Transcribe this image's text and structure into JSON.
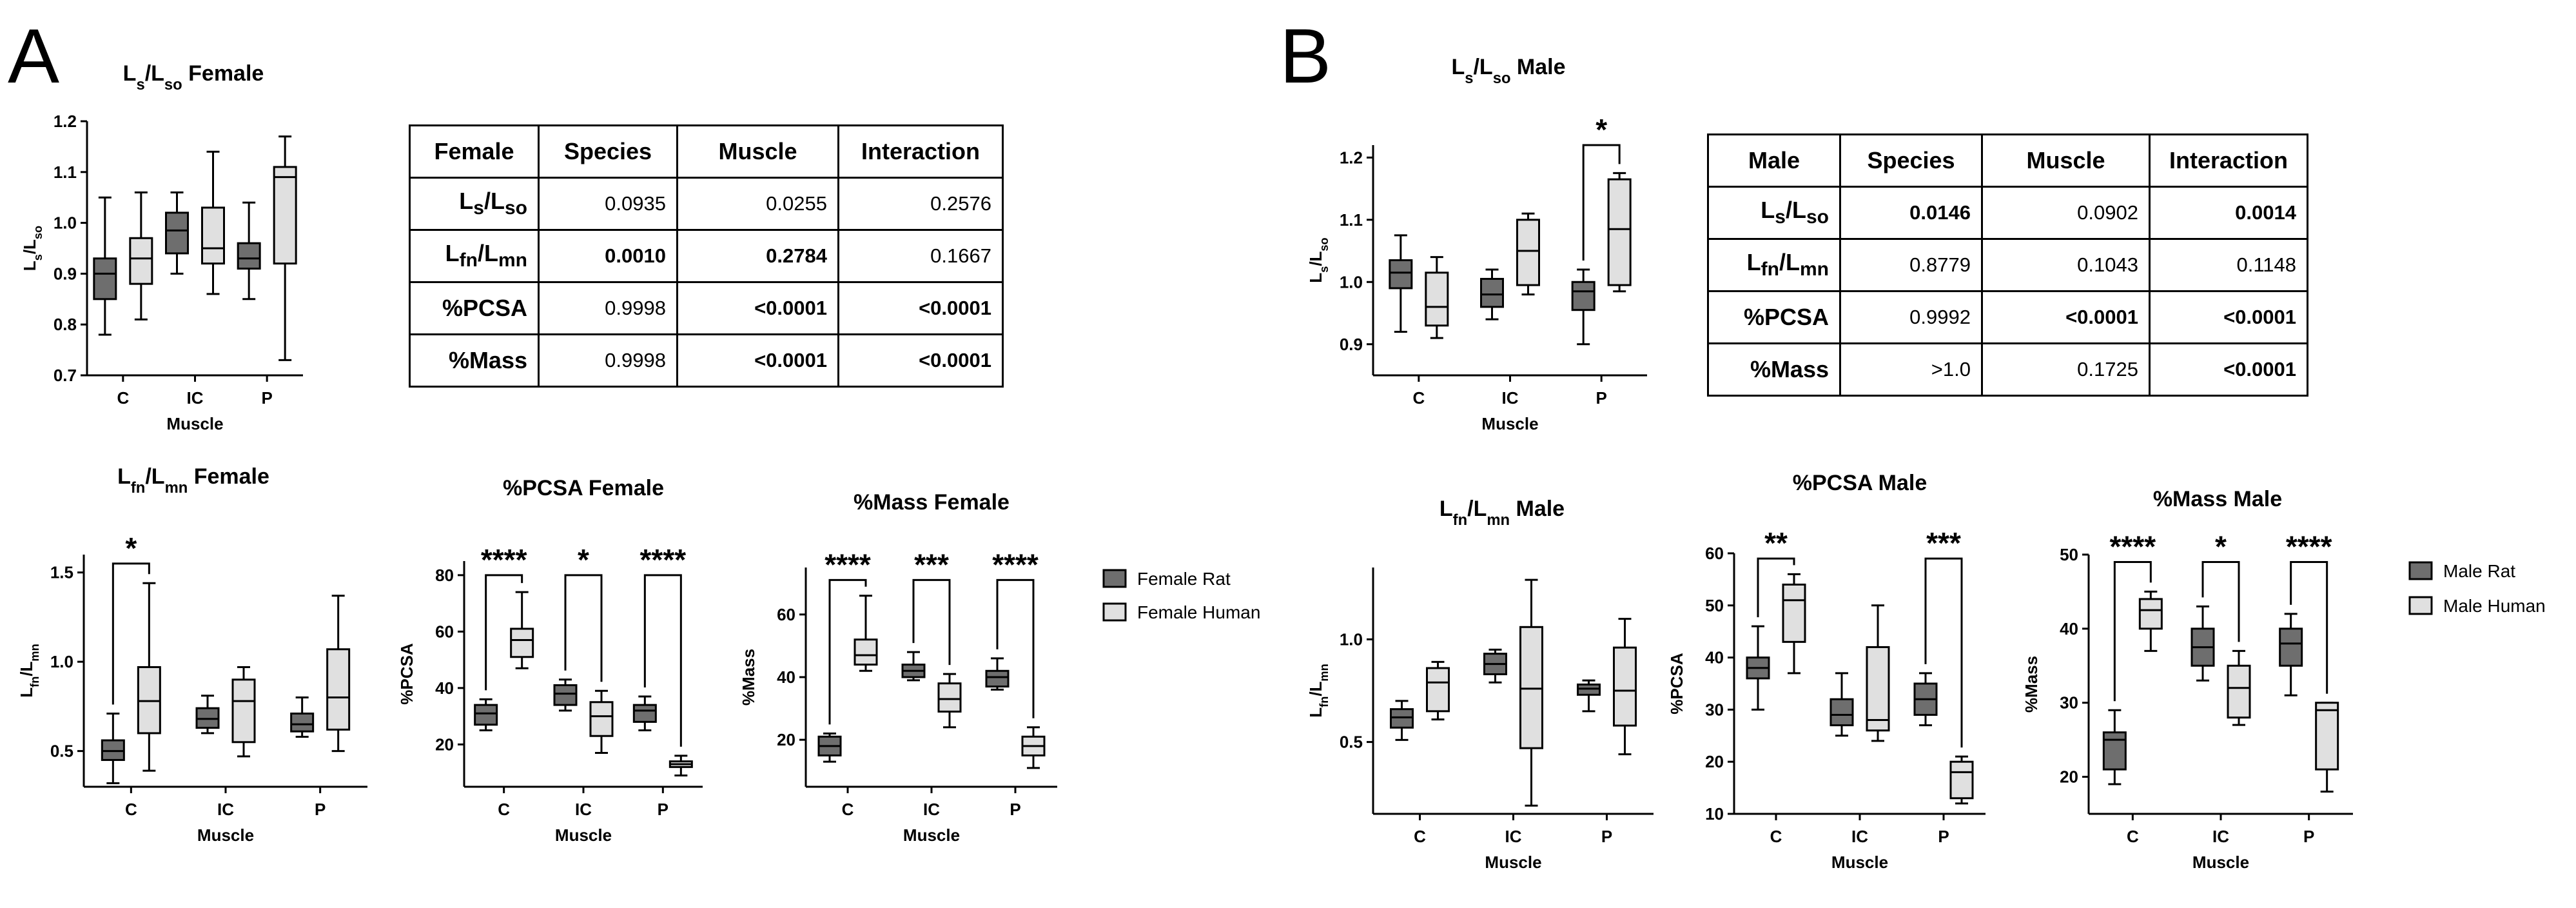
{
  "panels": [
    {
      "letter": "A",
      "table": {
        "headers": [
          "Female",
          "Species",
          "Muscle",
          "Interaction"
        ],
        "rows": [
          {
            "label": "L_s/L_so",
            "values": [
              "0.0935",
              "0.0255",
              "0.2576"
            ],
            "bold": [
              false,
              false,
              false
            ]
          },
          {
            "label": "L_fn/L_mn",
            "values": [
              "0.0010",
              "0.2784",
              "0.1667"
            ],
            "bold": [
              true,
              true,
              false
            ]
          },
          {
            "label": "%PCSA",
            "values": [
              "0.9998",
              "<0.0001",
              "<0.0001"
            ],
            "bold": [
              false,
              true,
              true
            ]
          },
          {
            "label": "%Mass",
            "values": [
              "0.9998",
              "<0.0001",
              "<0.0001"
            ],
            "bold": [
              false,
              true,
              true
            ]
          }
        ]
      },
      "legend": [
        {
          "label": "Female Rat",
          "color": "#6e6e6e"
        },
        {
          "label": "Female Human",
          "color": "#e0e0e0"
        }
      ]
    },
    {
      "letter": "B",
      "table": {
        "headers": [
          "Male",
          "Species",
          "Muscle",
          "Interaction"
        ],
        "rows": [
          {
            "label": "L_s/L_so",
            "values": [
              "0.0146",
              "0.0902",
              "0.0014"
            ],
            "bold": [
              true,
              false,
              true
            ]
          },
          {
            "label": "L_fn/L_mn",
            "values": [
              "0.8779",
              "0.1043",
              "0.1148"
            ],
            "bold": [
              false,
              false,
              false
            ]
          },
          {
            "label": "%PCSA",
            "values": [
              "0.9992",
              "<0.0001",
              "<0.0001"
            ],
            "bold": [
              false,
              true,
              true
            ]
          },
          {
            "label": "%Mass",
            "values": [
              ">1.0",
              "0.1725",
              "<0.0001"
            ],
            "bold": [
              false,
              false,
              true
            ]
          }
        ]
      },
      "legend": [
        {
          "label": "Male Rat",
          "color": "#6e6e6e"
        },
        {
          "label": "Male Human",
          "color": "#e0e0e0"
        }
      ]
    }
  ],
  "chart_data": [
    {
      "id": "A-lsso",
      "type": "box",
      "title": "L_s/L_so Female",
      "xlabel": "Muscle",
      "ylabel": "L_s/L_so",
      "categories": [
        "C",
        "IC",
        "P"
      ],
      "ylim": [
        0.7,
        1.2
      ],
      "yticks": [
        "0.7",
        "0.8",
        "0.9",
        "1.0",
        "1.1",
        "1.2"
      ],
      "series": [
        {
          "color": "#6e6e6e",
          "boxes": [
            [
              0.78,
              0.85,
              0.9,
              0.93,
              1.05
            ],
            [
              0.9,
              0.94,
              0.985,
              1.02,
              1.06
            ],
            [
              0.85,
              0.91,
              0.93,
              0.96,
              1.04
            ]
          ]
        },
        {
          "color": "#e0e0e0",
          "boxes": [
            [
              0.81,
              0.88,
              0.93,
              0.97,
              1.06
            ],
            [
              0.86,
              0.92,
              0.95,
              1.03,
              1.14
            ],
            [
              0.73,
              0.92,
              1.09,
              1.11,
              1.17
            ]
          ]
        }
      ],
      "significance": []
    },
    {
      "id": "A-lfn",
      "type": "box",
      "title": "L_fn/L_mn Female",
      "xlabel": "Muscle",
      "ylabel": "L_fn/L_mn",
      "categories": [
        "C",
        "IC",
        "P"
      ],
      "ylim": [
        0.3,
        1.6
      ],
      "yticks": [
        "0.5",
        "1.0",
        "1.5"
      ],
      "series": [
        {
          "color": "#6e6e6e",
          "boxes": [
            [
              0.32,
              0.45,
              0.5,
              0.56,
              0.71
            ],
            [
              0.6,
              0.63,
              0.68,
              0.74,
              0.81
            ],
            [
              0.58,
              0.61,
              0.65,
              0.71,
              0.8
            ]
          ]
        },
        {
          "color": "#e0e0e0",
          "boxes": [
            [
              0.39,
              0.6,
              0.78,
              0.97,
              1.44
            ],
            [
              0.47,
              0.55,
              0.78,
              0.9,
              0.97
            ],
            [
              0.5,
              0.62,
              0.8,
              1.07,
              1.37
            ]
          ]
        }
      ],
      "significance": [
        {
          "group": "C",
          "label": "*",
          "level": 1.55
        }
      ]
    },
    {
      "id": "A-pcsa",
      "type": "box",
      "title": "%PCSA Female",
      "xlabel": "Muscle",
      "ylabel": "%PCSA",
      "categories": [
        "C",
        "IC",
        "P"
      ],
      "ylim": [
        5,
        85
      ],
      "yticks": [
        "20",
        "40",
        "60",
        "80"
      ],
      "series": [
        {
          "color": "#6e6e6e",
          "boxes": [
            [
              25,
              27,
              31,
              34,
              36
            ],
            [
              32,
              34,
              38,
              41,
              43
            ],
            [
              25,
              28,
              32,
              34,
              37
            ]
          ]
        },
        {
          "color": "#e0e0e0",
          "boxes": [
            [
              47,
              51,
              57,
              61,
              74
            ],
            [
              17,
              23,
              30,
              35,
              39
            ],
            [
              9,
              12,
              13,
              14,
              16
            ]
          ]
        }
      ],
      "significance": [
        {
          "group": "C",
          "label": "****",
          "level": 80
        },
        {
          "group": "IC",
          "label": "*",
          "level": 80
        },
        {
          "group": "P",
          "label": "****",
          "level": 80
        }
      ]
    },
    {
      "id": "A-mass",
      "type": "box",
      "title": "%Mass Female",
      "xlabel": "Muscle",
      "ylabel": "%Mass",
      "categories": [
        "C",
        "IC",
        "P"
      ],
      "ylim": [
        5,
        75
      ],
      "yticks": [
        "20",
        "40",
        "60"
      ],
      "series": [
        {
          "color": "#6e6e6e",
          "boxes": [
            [
              13,
              15,
              18,
              21,
              22
            ],
            [
              39,
              40,
              42,
              44,
              48
            ],
            [
              36,
              37,
              40,
              42,
              46
            ]
          ]
        },
        {
          "color": "#e0e0e0",
          "boxes": [
            [
              42,
              44,
              47,
              52,
              66
            ],
            [
              24,
              29,
              33,
              38,
              41
            ],
            [
              11,
              15,
              18,
              21,
              24
            ]
          ]
        }
      ],
      "significance": [
        {
          "group": "C",
          "label": "****",
          "level": 71
        },
        {
          "group": "IC",
          "label": "***",
          "level": 71
        },
        {
          "group": "P",
          "label": "****",
          "level": 71
        }
      ]
    },
    {
      "id": "B-lsso",
      "type": "box",
      "title": "L_s/L_so Male",
      "xlabel": "Muscle",
      "ylabel": "L_s/L_so",
      "categories": [
        "C",
        "IC",
        "P"
      ],
      "ylim": [
        0.85,
        1.22
      ],
      "yticks": [
        "0.9",
        "1.0",
        "1.1",
        "1.2"
      ],
      "series": [
        {
          "color": "#6e6e6e",
          "boxes": [
            [
              0.92,
              0.99,
              1.015,
              1.035,
              1.075
            ],
            [
              0.94,
              0.96,
              0.98,
              1.005,
              1.02
            ],
            [
              0.9,
              0.955,
              0.985,
              1.0,
              1.02
            ]
          ]
        },
        {
          "color": "#e0e0e0",
          "boxes": [
            [
              0.91,
              0.93,
              0.96,
              1.015,
              1.04
            ],
            [
              0.98,
              0.995,
              1.05,
              1.1,
              1.11
            ],
            [
              0.985,
              0.995,
              1.085,
              1.165,
              1.175
            ]
          ]
        }
      ],
      "significance": [
        {
          "group": "P",
          "label": "*",
          "level": 1.22
        }
      ]
    },
    {
      "id": "B-lfn",
      "type": "box",
      "title": "L_fn/L_mn Male",
      "xlabel": "Muscle",
      "ylabel": "L_fn/L_mn",
      "categories": [
        "C",
        "IC",
        "P"
      ],
      "ylim": [
        0.15,
        1.35
      ],
      "yticks": [
        "0.5",
        "1.0"
      ],
      "series": [
        {
          "color": "#6e6e6e",
          "boxes": [
            [
              0.51,
              0.57,
              0.62,
              0.66,
              0.7
            ],
            [
              0.79,
              0.83,
              0.88,
              0.93,
              0.95
            ],
            [
              0.65,
              0.73,
              0.76,
              0.78,
              0.8
            ]
          ]
        },
        {
          "color": "#e0e0e0",
          "boxes": [
            [
              0.61,
              0.65,
              0.79,
              0.86,
              0.89
            ],
            [
              0.19,
              0.47,
              0.76,
              1.06,
              1.29
            ],
            [
              0.44,
              0.58,
              0.75,
              0.96,
              1.1
            ]
          ]
        }
      ],
      "significance": []
    },
    {
      "id": "B-pcsa",
      "type": "box",
      "title": "%PCSA Male",
      "xlabel": "Muscle",
      "ylabel": "%PCSA",
      "categories": [
        "C",
        "IC",
        "P"
      ],
      "ylim": [
        10,
        60
      ],
      "yticks": [
        "10",
        "20",
        "30",
        "40",
        "50",
        "60"
      ],
      "series": [
        {
          "color": "#6e6e6e",
          "boxes": [
            [
              30,
              36,
              38,
              40,
              46
            ],
            [
              25,
              27,
              29,
              32,
              37
            ],
            [
              27,
              29,
              32,
              35,
              37
            ]
          ]
        },
        {
          "color": "#e0e0e0",
          "boxes": [
            [
              37,
              43,
              51,
              54,
              56
            ],
            [
              24,
              26,
              28,
              42,
              50
            ],
            [
              12,
              13,
              18,
              20,
              21
            ]
          ]
        }
      ],
      "significance": [
        {
          "group": "C",
          "label": "**",
          "level": 59
        },
        {
          "group": "P",
          "label": "***",
          "level": 59
        }
      ]
    },
    {
      "id": "B-mass",
      "type": "box",
      "title": "%Mass Male",
      "xlabel": "Muscle",
      "ylabel": "%Mass",
      "categories": [
        "C",
        "IC",
        "P"
      ],
      "ylim": [
        15,
        50
      ],
      "yticks": [
        "20",
        "30",
        "40",
        "50"
      ],
      "series": [
        {
          "color": "#6e6e6e",
          "boxes": [
            [
              19,
              21,
              25,
              26,
              29
            ],
            [
              33,
              35,
              37.5,
              40,
              43
            ],
            [
              31,
              35,
              38,
              40,
              42
            ]
          ]
        },
        {
          "color": "#e0e0e0",
          "boxes": [
            [
              37,
              40,
              42.5,
              44,
              45
            ],
            [
              27,
              28,
              32,
              35,
              37
            ],
            [
              18,
              21,
              29,
              30,
              30
            ]
          ]
        }
      ],
      "significance": [
        {
          "group": "C",
          "label": "****",
          "level": 49
        },
        {
          "group": "IC",
          "label": "*",
          "level": 49
        },
        {
          "group": "P",
          "label": "****",
          "level": 49
        }
      ]
    }
  ]
}
